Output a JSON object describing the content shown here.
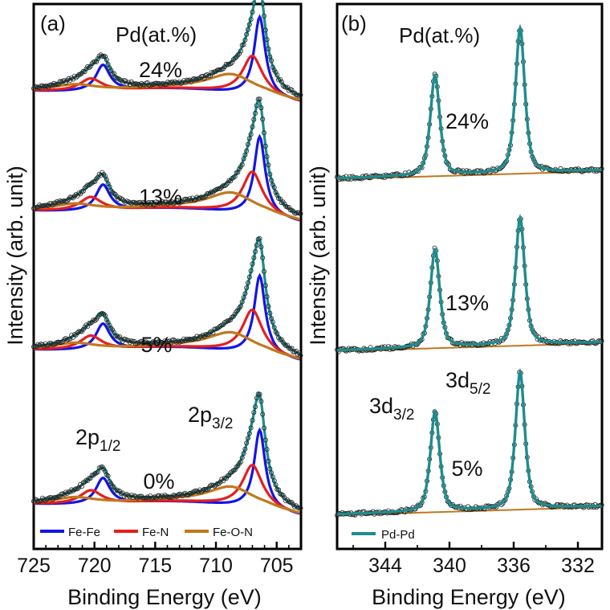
{
  "colors": {
    "fefe": "#1414e6",
    "fen": "#e61e1e",
    "feon": "#c0781e",
    "total": "#1e8c8c",
    "pdpd": "#1e8c8c",
    "points": "#222222",
    "axis": "#000000"
  },
  "chart_data": [
    {
      "type": "line",
      "panel_label": "(a)",
      "header": "Pd(at.%)",
      "xlabel": "Binding Energy (eV)",
      "ylabel": "Intensity (arb. unit)",
      "xlim": [
        725,
        703
      ],
      "x_ticks": [
        "725",
        "720",
        "715",
        "710",
        "705"
      ],
      "x_tick_values": [
        725,
        720,
        715,
        710,
        705
      ],
      "peak_labels": [
        {
          "base": "2p",
          "sub": "1/2",
          "x": 720
        },
        {
          "base": "2p",
          "sub": "3/2",
          "x": 708
        }
      ],
      "legend": [
        "Fe-Fe",
        "Fe-N",
        "Fe-O-N"
      ],
      "spectra": [
        {
          "label": "24%",
          "total_peak_3_2": 706.5,
          "total_peak_1_2": 719.8
        },
        {
          "label": "13%",
          "total_peak_3_2": 706.5,
          "total_peak_1_2": 719.7
        },
        {
          "label": "5%",
          "total_peak_3_2": 706.5,
          "total_peak_1_2": 719.7
        },
        {
          "label": "0%",
          "total_peak_3_2": 706.5,
          "total_peak_1_2": 719.6
        }
      ],
      "components": [
        {
          "name": "Fe-Fe",
          "center_3_2": 706.4,
          "center_1_2": 719.3
        },
        {
          "name": "Fe-N",
          "center_3_2": 707.0,
          "center_1_2": 720.3
        },
        {
          "name": "Fe-O-N",
          "center_3_2": 708.7,
          "center_1_2": 721.6
        }
      ]
    },
    {
      "type": "line",
      "panel_label": "(b)",
      "header": "Pd(at.%)",
      "xlabel": "Binding Energy (eV)",
      "ylabel": "Intensity (arb. unit)",
      "xlim": [
        347,
        330.5
      ],
      "x_ticks": [
        "344",
        "340",
        "336",
        "332"
      ],
      "x_tick_values": [
        344,
        340,
        336,
        332
      ],
      "peak_labels": [
        {
          "base": "3d",
          "sub": "3/2",
          "x": 340.9
        },
        {
          "base": "3d",
          "sub": "5/2",
          "x": 335.6
        }
      ],
      "legend": [
        "Pd-Pd"
      ],
      "spectra": [
        {
          "label": "24%",
          "peak_3_2": 340.9,
          "peak_5_2": 335.6
        },
        {
          "label": "13%",
          "peak_3_2": 340.9,
          "peak_5_2": 335.6
        },
        {
          "label": "5%",
          "peak_3_2": 340.9,
          "peak_5_2": 335.6
        }
      ]
    }
  ]
}
